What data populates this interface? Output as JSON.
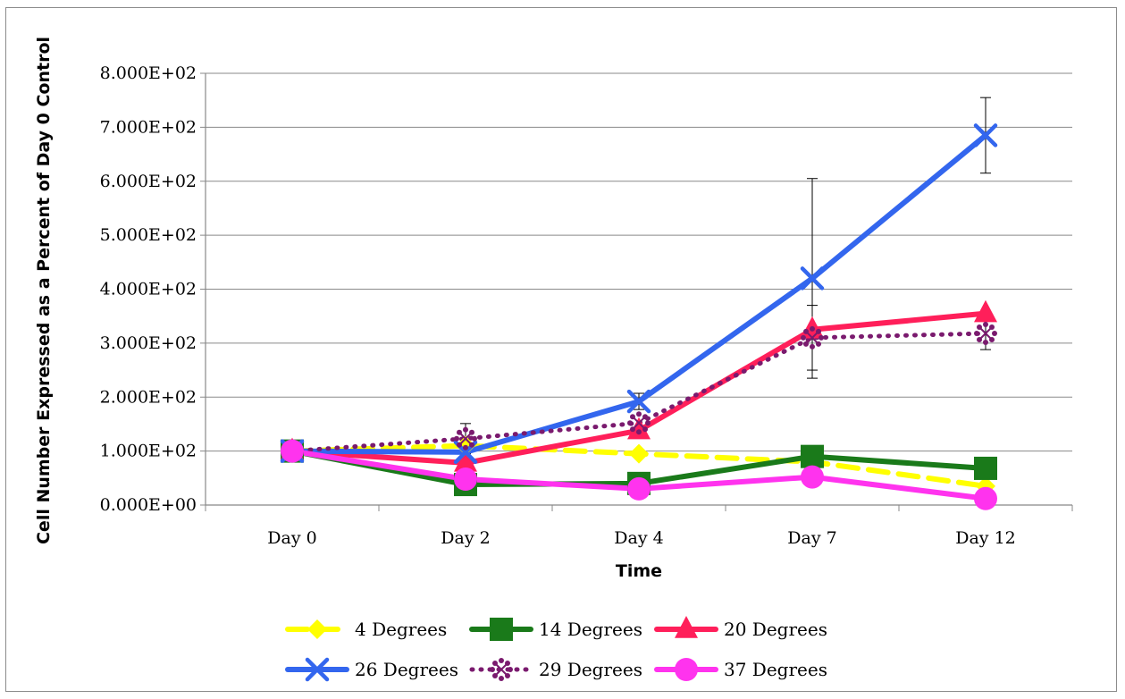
{
  "chart_data": {
    "type": "line",
    "title": "",
    "xlabel": "Time",
    "ylabel": "Cell Number Expressed as a Percent of Day 0 Control",
    "categories": [
      "Day 0",
      "Day 2",
      "Day 4",
      "Day 7",
      "Day 12"
    ],
    "ylim": [
      0,
      800
    ],
    "yticks": [
      0,
      100,
      200,
      300,
      400,
      500,
      600,
      700,
      800
    ],
    "ytick_labels": [
      "0.000E+00",
      "1.000E+02",
      "2.000E+02",
      "3.000E+02",
      "4.000E+02",
      "5.000E+02",
      "6.000E+02",
      "7.000E+02",
      "8.000E+02"
    ],
    "grid": true,
    "legend_position": "bottom",
    "series": [
      {
        "name": "4 Degrees",
        "color": "#ffff00",
        "marker": "diamond",
        "dash": "dashed",
        "values": [
          100,
          110,
          95,
          80,
          35
        ]
      },
      {
        "name": "14 Degrees",
        "color": "#1a7a1a",
        "marker": "square",
        "dash": "solid",
        "values": [
          100,
          38,
          40,
          90,
          68
        ]
      },
      {
        "name": "20 Degrees",
        "color": "#ff1f5a",
        "marker": "triangle",
        "dash": "solid",
        "values": [
          100,
          78,
          138,
          325,
          355
        ]
      },
      {
        "name": "26 Degrees",
        "color": "#3366ee",
        "marker": "x",
        "dash": "solid",
        "values": [
          100,
          98,
          192,
          420,
          685
        ],
        "error": [
          0,
          0,
          15,
          185,
          70
        ]
      },
      {
        "name": "29 Degrees",
        "color": "#7a1a6e",
        "marker": "star",
        "dash": "dotted",
        "values": [
          100,
          123,
          152,
          310,
          318
        ],
        "error": [
          0,
          28,
          0,
          60,
          30
        ]
      },
      {
        "name": "37 Degrees",
        "color": "#ff33ee",
        "marker": "circle",
        "dash": "solid",
        "values": [
          100,
          48,
          30,
          52,
          12
        ]
      }
    ]
  }
}
